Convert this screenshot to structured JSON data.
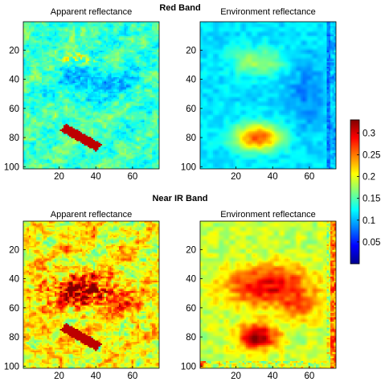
{
  "figure": {
    "bands": [
      {
        "title": "Red Band",
        "panels": [
          {
            "title": "Apparent reflectance"
          },
          {
            "title": "Environment reflectance"
          }
        ]
      },
      {
        "title": "Near IR Band",
        "panels": [
          {
            "title": "Apparent reflectance"
          },
          {
            "title": "Environment reflectance"
          }
        ]
      }
    ],
    "colormap": "jet"
  },
  "chart_data": {
    "type": "heatmap",
    "grid": false,
    "colorbar": {
      "min": 0.0,
      "max": 0.33,
      "ticks": [
        0.05,
        0.1,
        0.15,
        0.2,
        0.25,
        0.3
      ],
      "tick_labels": [
        "0.05",
        "0.1",
        "0.15",
        "0.2",
        "0.25",
        "0.3"
      ],
      "placement": "right"
    },
    "x": {
      "range": [
        1,
        74
      ],
      "ticks": [
        20,
        40,
        60
      ],
      "tick_labels": [
        "20",
        "40",
        "60"
      ]
    },
    "y": {
      "range": [
        1,
        101
      ],
      "reversed": true,
      "ticks": [
        20,
        40,
        60,
        80,
        100
      ],
      "tick_labels": [
        "20",
        "40",
        "60",
        "80",
        "100"
      ]
    },
    "panels": [
      {
        "band": "Red Band",
        "title": "Apparent reflectance",
        "typical_value": 0.12,
        "max_value": 0.31
      },
      {
        "band": "Red Band",
        "title": "Environment reflectance",
        "typical_value": 0.12,
        "max_value": 0.28
      },
      {
        "band": "Near IR Band",
        "title": "Apparent reflectance",
        "typical_value": 0.18,
        "max_value": 0.33
      },
      {
        "band": "Near IR Band",
        "title": "Environment reflectance",
        "typical_value": 0.22,
        "max_value": 0.31
      }
    ]
  }
}
